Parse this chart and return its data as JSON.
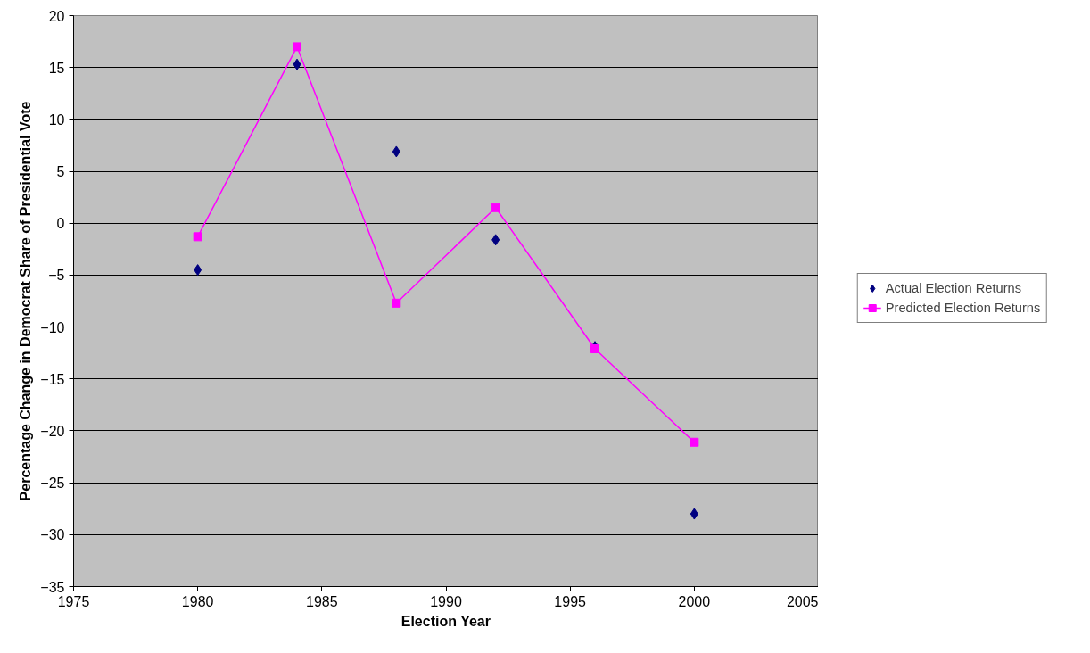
{
  "chart_data": {
    "type": "line",
    "xlabel": "Election Year",
    "ylabel": "Percentage Change in Democrat Share of Presidential Vote",
    "x": [
      1980,
      1984,
      1988,
      1992,
      1996,
      2000
    ],
    "series": [
      {
        "name": "Actual Election Returns",
        "type": "scatter",
        "marker": "diamond",
        "color": "#000080",
        "values": [
          -4.5,
          15.3,
          6.9,
          -1.6,
          -11.9,
          -28.0
        ]
      },
      {
        "name": "Predicted Election Returns",
        "marker": "square",
        "color": "#ff00ff",
        "values": [
          -1.3,
          17.0,
          -7.7,
          1.5,
          -12.1,
          -21.1
        ]
      }
    ],
    "xlim": [
      1975,
      2005
    ],
    "xticks": [
      1975,
      1980,
      1985,
      1990,
      1995,
      2000,
      2005
    ],
    "ylim": [
      -35,
      20
    ],
    "yticks": [
      -35,
      -30,
      -25,
      -20,
      -15,
      -10,
      -5,
      0,
      5,
      10,
      15,
      20
    ],
    "grid": "y",
    "legend": "right"
  }
}
